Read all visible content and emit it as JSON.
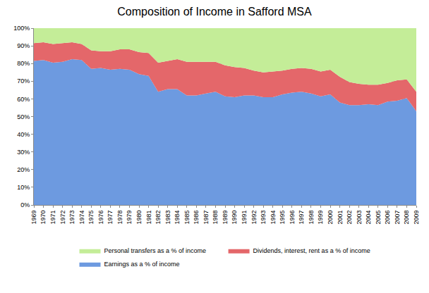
{
  "chart_data": {
    "type": "area",
    "title": "Composition of Income in Safford MSA",
    "stacked": true,
    "grid": true,
    "legend": "bottom",
    "categories": [
      "1969",
      "1970",
      "1971",
      "1972",
      "1973",
      "1974",
      "1975",
      "1976",
      "1977",
      "1978",
      "1979",
      "1980",
      "1981",
      "1982",
      "1983",
      "1984",
      "1985",
      "1986",
      "1987",
      "1988",
      "1989",
      "1990",
      "1991",
      "1992",
      "1993",
      "1994",
      "1995",
      "1996",
      "1997",
      "1998",
      "1999",
      "2000",
      "2001",
      "2002",
      "2003",
      "2004",
      "2005",
      "2006",
      "2007",
      "2008",
      "2009"
    ],
    "series": [
      {
        "name": "Earnings as a % of income",
        "color": "#6d9ae0",
        "values": [
          81.5,
          82,
          80.5,
          81,
          82.5,
          82,
          77,
          77.5,
          76.5,
          77,
          76.5,
          74,
          73,
          64,
          65.5,
          65.5,
          62,
          62,
          63,
          64,
          61.5,
          61,
          62,
          62,
          61,
          61,
          62.5,
          63.5,
          64,
          63,
          61.5,
          62.5,
          58,
          56.5,
          56.5,
          57,
          56.5,
          58.5,
          59,
          60.5,
          53
        ]
      },
      {
        "name": "Dividends, interest, rent as a % of income",
        "color": "#e4676a",
        "values": [
          10,
          10,
          10.5,
          10.5,
          9.5,
          9,
          10.5,
          9.5,
          10.5,
          11,
          11.5,
          12.5,
          13,
          16.5,
          16,
          17,
          19,
          19,
          18,
          17,
          17.5,
          17,
          15.5,
          14,
          14,
          14.5,
          13.5,
          13.5,
          13.5,
          14,
          14,
          14,
          14.5,
          13,
          12,
          11,
          11.5,
          10.5,
          11.5,
          10.5,
          11
        ]
      },
      {
        "name": "Personal transfers as a % of income",
        "color": "#c4ed98",
        "values": [
          8.5,
          8,
          9,
          8.5,
          8,
          9,
          12.5,
          13,
          13,
          12,
          12,
          13.5,
          14,
          19.5,
          18.5,
          17.5,
          19,
          19,
          19,
          19,
          21,
          22,
          22.5,
          24,
          25,
          24.5,
          24,
          23,
          22.5,
          23,
          24.5,
          23.5,
          27.5,
          30.5,
          31.5,
          32,
          32,
          31,
          29.5,
          29,
          36
        ]
      }
    ],
    "ylim": [
      0,
      100
    ],
    "yticks": [
      {
        "value": 0,
        "label": "0%"
      },
      {
        "value": 10,
        "label": "10%"
      },
      {
        "value": 20,
        "label": "20%"
      },
      {
        "value": 30,
        "label": "30%"
      },
      {
        "value": 40,
        "label": "40%"
      },
      {
        "value": 50,
        "label": "50%"
      },
      {
        "value": 60,
        "label": "60%"
      },
      {
        "value": 70,
        "label": "70%"
      },
      {
        "value": 80,
        "label": "80%"
      },
      {
        "value": 90,
        "label": "90%"
      },
      {
        "value": 100,
        "label": "100%"
      }
    ]
  }
}
